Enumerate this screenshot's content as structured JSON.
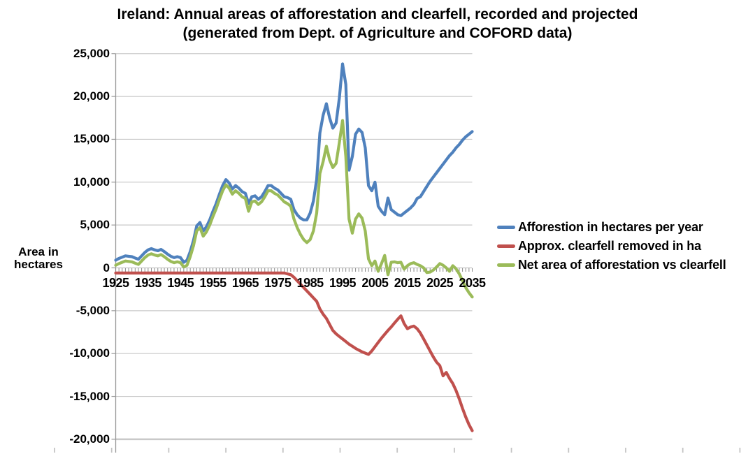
{
  "title": {
    "line1": "Ireland: Annual areas of afforestation and clearfell, recorded and projected",
    "line2": "(generated from Dept. of Agriculture and COFORD data)"
  },
  "y_axis": {
    "title_line1": "Area in",
    "title_line2": "hectares",
    "tick_labels": [
      "25,000",
      "20,000",
      "15,000",
      "10,000",
      "5,000",
      "0",
      "-5,000",
      "-10,000",
      "-15,000",
      "-20,000"
    ],
    "tick_values": [
      25000,
      20000,
      15000,
      10000,
      5000,
      0,
      -5000,
      -10000,
      -15000,
      -20000
    ],
    "min": -20000,
    "max": 25000
  },
  "x_axis": {
    "tick_labels": [
      "1925",
      "1935",
      "1945",
      "1955",
      "1965",
      "1975",
      "1985",
      "1995",
      "2005",
      "2015",
      "2025",
      "2035"
    ],
    "tick_values": [
      1925,
      1935,
      1945,
      1955,
      1965,
      1975,
      1985,
      1995,
      2005,
      2015,
      2025,
      2035
    ],
    "min": 1925,
    "max": 2035
  },
  "legend": {
    "items": [
      {
        "label": "Afforestion in hectares per year",
        "color": "#4F81BD"
      },
      {
        "label": "Approx. clearfell removed in ha",
        "color": "#C0504D"
      },
      {
        "label": "Net area of afforestation vs clearfell",
        "color": "#9BBB59"
      }
    ]
  },
  "chart_data": {
    "type": "line",
    "title": "Ireland: Annual areas of afforestation and clearfell, recorded and projected (generated from Dept. of Agriculture and COFORD data)",
    "xlabel": "",
    "ylabel": "Area in hectares",
    "ylim": [
      -20000,
      25000
    ],
    "xlim": [
      1925,
      2035
    ],
    "grid": true,
    "legend_position": "right",
    "x": [
      1925,
      1926,
      1927,
      1928,
      1929,
      1930,
      1931,
      1932,
      1933,
      1934,
      1935,
      1936,
      1937,
      1938,
      1939,
      1940,
      1941,
      1942,
      1943,
      1944,
      1945,
      1946,
      1947,
      1948,
      1949,
      1950,
      1951,
      1952,
      1953,
      1954,
      1955,
      1956,
      1957,
      1958,
      1959,
      1960,
      1961,
      1962,
      1963,
      1964,
      1965,
      1966,
      1967,
      1968,
      1969,
      1970,
      1971,
      1972,
      1973,
      1974,
      1975,
      1976,
      1977,
      1978,
      1979,
      1980,
      1981,
      1982,
      1983,
      1984,
      1985,
      1986,
      1987,
      1988,
      1989,
      1990,
      1991,
      1992,
      1993,
      1994,
      1995,
      1996,
      1997,
      1998,
      1999,
      2000,
      2001,
      2002,
      2003,
      2004,
      2005,
      2006,
      2007,
      2008,
      2009,
      2010,
      2011,
      2012,
      2013,
      2014,
      2015,
      2016,
      2017,
      2018,
      2019,
      2020,
      2021,
      2022,
      2023,
      2024,
      2025,
      2026,
      2027,
      2028,
      2029,
      2030,
      2031,
      2032,
      2033,
      2034,
      2035
    ],
    "series": [
      {
        "name": "Afforestion in hectares per year",
        "color": "#4F81BD",
        "values": [
          900,
          1100,
          1250,
          1400,
          1350,
          1300,
          1150,
          1000,
          1400,
          1800,
          2100,
          2250,
          2100,
          2000,
          2150,
          1900,
          1600,
          1350,
          1200,
          1300,
          1200,
          650,
          900,
          1900,
          3200,
          4900,
          5300,
          4300,
          4800,
          5600,
          6600,
          7500,
          8600,
          9600,
          10300,
          9900,
          9200,
          9600,
          9300,
          8900,
          8700,
          7500,
          8300,
          8400,
          8000,
          8300,
          8900,
          9600,
          9600,
          9300,
          9100,
          8700,
          8300,
          8200,
          8000,
          6800,
          6200,
          5800,
          5600,
          5600,
          6400,
          7800,
          10300,
          15750,
          17800,
          19150,
          17500,
          16300,
          16900,
          19800,
          23800,
          21400,
          11400,
          13000,
          15600,
          16200,
          15800,
          14000,
          9600,
          9000,
          10000,
          7200,
          6600,
          6200,
          8150,
          6800,
          6500,
          6200,
          6100,
          6400,
          6700,
          7000,
          7400,
          8100,
          8300,
          8900,
          9500,
          10100,
          10600,
          11100,
          11600,
          12100,
          12600,
          13100,
          13500,
          14000,
          14400,
          14900,
          15300,
          15600,
          15900
        ]
      },
      {
        "name": "Approx. clearfell removed in ha",
        "color": "#C0504D",
        "values": [
          -600,
          -600,
          -600,
          -600,
          -600,
          -600,
          -600,
          -600,
          -600,
          -600,
          -600,
          -600,
          -600,
          -600,
          -600,
          -600,
          -600,
          -600,
          -600,
          -600,
          -600,
          -600,
          -600,
          -600,
          -600,
          -600,
          -600,
          -600,
          -600,
          -600,
          -600,
          -600,
          -600,
          -600,
          -600,
          -600,
          -600,
          -600,
          -600,
          -600,
          -600,
          -600,
          -600,
          -600,
          -600,
          -600,
          -600,
          -600,
          -600,
          -600,
          -600,
          -600,
          -600,
          -700,
          -800,
          -1100,
          -1500,
          -1900,
          -2300,
          -2700,
          -3100,
          -3500,
          -3900,
          -4800,
          -5400,
          -5900,
          -6600,
          -7300,
          -7700,
          -8000,
          -8300,
          -8600,
          -8900,
          -9150,
          -9400,
          -9600,
          -9800,
          -9950,
          -10100,
          -9700,
          -9200,
          -8700,
          -8200,
          -7750,
          -7300,
          -6900,
          -6450,
          -6000,
          -5600,
          -6500,
          -7100,
          -6900,
          -6800,
          -7100,
          -7600,
          -8300,
          -9000,
          -9700,
          -10400,
          -11000,
          -11400,
          -12600,
          -12200,
          -12900,
          -13500,
          -14300,
          -15300,
          -16400,
          -17400,
          -18300,
          -19000
        ]
      },
      {
        "name": "Net area of afforestation vs clearfell",
        "color": "#9BBB59",
        "values": [
          300,
          500,
          650,
          800,
          750,
          700,
          550,
          400,
          800,
          1200,
          1500,
          1650,
          1500,
          1400,
          1550,
          1300,
          1000,
          750,
          600,
          700,
          600,
          100,
          300,
          1300,
          2600,
          4300,
          4700,
          3700,
          4200,
          5000,
          6000,
          6900,
          8000,
          9000,
          9700,
          9300,
          8600,
          9000,
          8700,
          8300,
          8100,
          6600,
          7700,
          7800,
          7400,
          7700,
          8300,
          9000,
          9000,
          8700,
          8500,
          8100,
          7700,
          7500,
          7200,
          5700,
          4700,
          3900,
          3300,
          2950,
          3300,
          4300,
          6400,
          11000,
          12400,
          14200,
          12600,
          11700,
          12200,
          14600,
          17200,
          13000,
          5700,
          4050,
          5700,
          6300,
          5800,
          4300,
          1050,
          250,
          800,
          -400,
          500,
          1450,
          -800,
          650,
          700,
          600,
          650,
          -150,
          250,
          500,
          600,
          400,
          250,
          0,
          -550,
          -500,
          -250,
          100,
          500,
          300,
          0,
          -400,
          250,
          -100,
          -700,
          -1500,
          -2300,
          -2900,
          -3400
        ]
      }
    ]
  },
  "colors": {
    "gridline": "#C9C9C9",
    "axis": "#9A9A9A",
    "background": "#FFFFFF"
  }
}
